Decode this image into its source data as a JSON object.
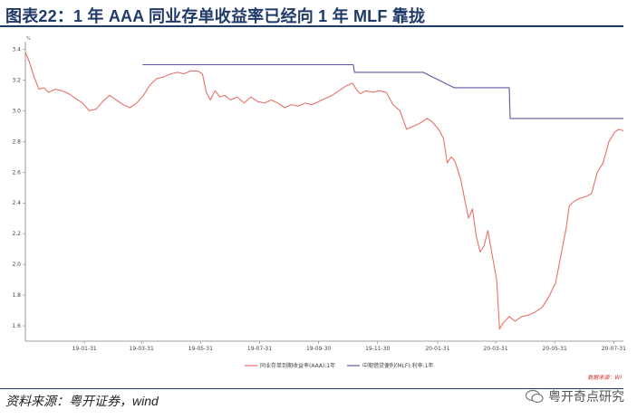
{
  "header": {
    "title": "图表22：1 年 AAA 同业存单收益率已经向 1 年 MLF 靠拢"
  },
  "footer": {
    "source": "资料来源：粤开证券，wind",
    "watermark": "粤开奇点研究"
  },
  "colors": {
    "title": "#1f3a68",
    "ncd_line": "#e8706a",
    "mlf_line": "#5a5aa0",
    "axis": "#808080"
  },
  "chart_data": {
    "type": "line",
    "unit": "%",
    "source_note": "数据来源：Wi",
    "ylim": [
      1.5,
      3.45
    ],
    "yticks": [
      1.6,
      1.8,
      2.0,
      2.2,
      2.4,
      2.6,
      2.8,
      3.0,
      3.2,
      3.4
    ],
    "ytick_labels": [
      "1.6",
      "1.8",
      "2.0",
      "2.2",
      "2.4",
      "2.6",
      "2.8",
      "3.0",
      "3.2",
      "3.4"
    ],
    "xlim": [
      "2018-12-01",
      "2020-08-10"
    ],
    "xticks": [
      "2019-01-31",
      "2019-03-31",
      "2019-05-31",
      "2019-07-31",
      "2019-09-30",
      "2019-11-30",
      "2020-01-31",
      "2020-03-31",
      "2020-05-31",
      "2020-07-31"
    ],
    "xtick_labels": [
      "19-01-31",
      "19-03-31",
      "19-05-31",
      "19-07-31",
      "19-09-30",
      "19-11-30",
      "20-01-31",
      "20-03-31",
      "20-05-31",
      "20-07-31"
    ],
    "legend_position": "bottom",
    "series": [
      {
        "name": "同业存单到期收益率(AAA):1年",
        "color": "#e8706a",
        "points": [
          [
            "2018-12-01",
            3.38
          ],
          [
            "2018-12-05",
            3.32
          ],
          [
            "2018-12-10",
            3.22
          ],
          [
            "2018-12-15",
            3.14
          ],
          [
            "2018-12-20",
            3.15
          ],
          [
            "2018-12-25",
            3.12
          ],
          [
            "2019-01-01",
            3.14
          ],
          [
            "2019-01-08",
            3.13
          ],
          [
            "2019-01-15",
            3.11
          ],
          [
            "2019-01-22",
            3.08
          ],
          [
            "2019-01-29",
            3.05
          ],
          [
            "2019-02-05",
            3.0
          ],
          [
            "2019-02-12",
            3.01
          ],
          [
            "2019-02-19",
            3.06
          ],
          [
            "2019-02-26",
            3.1
          ],
          [
            "2019-03-05",
            3.07
          ],
          [
            "2019-03-12",
            3.04
          ],
          [
            "2019-03-19",
            3.02
          ],
          [
            "2019-03-26",
            3.05
          ],
          [
            "2019-04-02",
            3.1
          ],
          [
            "2019-04-09",
            3.17
          ],
          [
            "2019-04-16",
            3.21
          ],
          [
            "2019-04-23",
            3.22
          ],
          [
            "2019-04-30",
            3.24
          ],
          [
            "2019-05-07",
            3.25
          ],
          [
            "2019-05-14",
            3.24
          ],
          [
            "2019-05-21",
            3.26
          ],
          [
            "2019-05-28",
            3.26
          ],
          [
            "2019-06-02",
            3.24
          ],
          [
            "2019-06-06",
            3.12
          ],
          [
            "2019-06-10",
            3.07
          ],
          [
            "2019-06-15",
            3.13
          ],
          [
            "2019-06-20",
            3.09
          ],
          [
            "2019-06-25",
            3.1
          ],
          [
            "2019-07-01",
            3.07
          ],
          [
            "2019-07-08",
            3.09
          ],
          [
            "2019-07-15",
            3.05
          ],
          [
            "2019-07-22",
            3.09
          ],
          [
            "2019-07-29",
            3.06
          ],
          [
            "2019-08-05",
            3.05
          ],
          [
            "2019-08-12",
            3.07
          ],
          [
            "2019-08-19",
            3.05
          ],
          [
            "2019-08-26",
            3.02
          ],
          [
            "2019-09-02",
            3.04
          ],
          [
            "2019-09-09",
            3.03
          ],
          [
            "2019-09-16",
            3.05
          ],
          [
            "2019-09-23",
            3.04
          ],
          [
            "2019-09-30",
            3.06
          ],
          [
            "2019-10-07",
            3.08
          ],
          [
            "2019-10-14",
            3.1
          ],
          [
            "2019-10-21",
            3.13
          ],
          [
            "2019-10-28",
            3.16
          ],
          [
            "2019-11-04",
            3.18
          ],
          [
            "2019-11-08",
            3.14
          ],
          [
            "2019-11-12",
            3.11
          ],
          [
            "2019-11-18",
            3.13
          ],
          [
            "2019-11-25",
            3.12
          ],
          [
            "2019-12-02",
            3.13
          ],
          [
            "2019-12-09",
            3.12
          ],
          [
            "2019-12-16",
            3.04
          ],
          [
            "2019-12-23",
            3.0
          ],
          [
            "2019-12-30",
            2.88
          ],
          [
            "2020-01-06",
            2.9
          ],
          [
            "2020-01-13",
            2.92
          ],
          [
            "2020-01-20",
            2.95
          ],
          [
            "2020-01-25",
            2.93
          ],
          [
            "2020-02-01",
            2.88
          ],
          [
            "2020-02-06",
            2.82
          ],
          [
            "2020-02-10",
            2.66
          ],
          [
            "2020-02-14",
            2.7
          ],
          [
            "2020-02-18",
            2.67
          ],
          [
            "2020-02-24",
            2.55
          ],
          [
            "2020-02-28",
            2.42
          ],
          [
            "2020-03-03",
            2.3
          ],
          [
            "2020-03-07",
            2.36
          ],
          [
            "2020-03-11",
            2.18
          ],
          [
            "2020-03-15",
            2.08
          ],
          [
            "2020-03-19",
            2.12
          ],
          [
            "2020-03-23",
            2.22
          ],
          [
            "2020-03-28",
            2.04
          ],
          [
            "2020-04-01",
            1.9
          ],
          [
            "2020-04-04",
            1.58
          ],
          [
            "2020-04-08",
            1.62
          ],
          [
            "2020-04-14",
            1.66
          ],
          [
            "2020-04-20",
            1.63
          ],
          [
            "2020-04-27",
            1.66
          ],
          [
            "2020-05-04",
            1.67
          ],
          [
            "2020-05-11",
            1.69
          ],
          [
            "2020-05-18",
            1.72
          ],
          [
            "2020-05-25",
            1.79
          ],
          [
            "2020-06-01",
            1.88
          ],
          [
            "2020-06-07",
            2.08
          ],
          [
            "2020-06-12",
            2.24
          ],
          [
            "2020-06-15",
            2.38
          ],
          [
            "2020-06-20",
            2.41
          ],
          [
            "2020-06-26",
            2.43
          ],
          [
            "2020-07-02",
            2.44
          ],
          [
            "2020-07-08",
            2.46
          ],
          [
            "2020-07-14",
            2.6
          ],
          [
            "2020-07-20",
            2.66
          ],
          [
            "2020-07-26",
            2.8
          ],
          [
            "2020-08-01",
            2.86
          ],
          [
            "2020-08-05",
            2.88
          ],
          [
            "2020-08-10",
            2.87
          ]
        ]
      },
      {
        "name": "中期借贷便利(MLF):利率:1年",
        "color": "#5a5aa0",
        "points": [
          [
            "2019-04-01",
            3.3
          ],
          [
            "2019-11-05",
            3.3
          ],
          [
            "2019-11-06",
            3.25
          ],
          [
            "2020-01-16",
            3.25
          ],
          [
            "2020-02-17",
            3.15
          ],
          [
            "2020-04-14",
            3.15
          ],
          [
            "2020-04-15",
            2.95
          ],
          [
            "2020-08-10",
            2.95
          ]
        ]
      }
    ]
  }
}
